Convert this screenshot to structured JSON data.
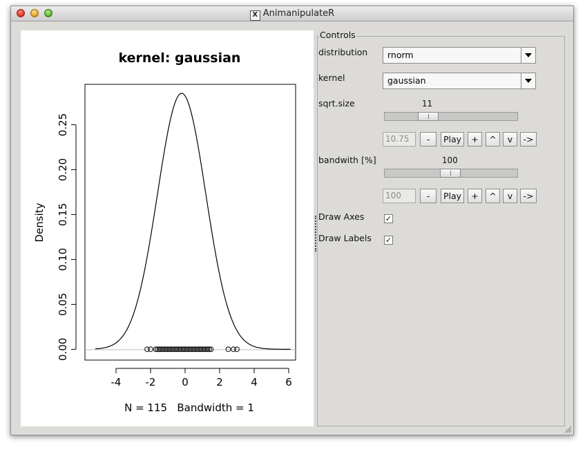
{
  "window": {
    "title": "AnimanipulateR",
    "x_icon": "X"
  },
  "plot": {
    "title": "kernel: gaussian",
    "ylabel": "Density",
    "xlabel": "N = 115   Bandwidth = 1",
    "xticks": [
      "-4",
      "-2",
      "0",
      "2",
      "4",
      "6"
    ],
    "yticks": [
      "0.00",
      "0.05",
      "0.10",
      "0.15",
      "0.20",
      "0.25"
    ]
  },
  "chart_data": {
    "type": "line",
    "title": "kernel: gaussian",
    "xlabel": "N = 115   Bandwidth = 1",
    "ylabel": "Density",
    "xlim": [
      -5.8,
      6.4
    ],
    "ylim": [
      -0.012,
      0.295
    ],
    "series": [
      {
        "shape": "gaussian density curve",
        "peak_x": -0.2,
        "peak_y": 0.285,
        "sd": 1.4
      }
    ],
    "rug_points": [
      -2.2,
      -2.0,
      -1.7,
      -1.6,
      -1.5,
      -1.4,
      -1.3,
      -1.2,
      -1.1,
      -1.0,
      -0.9,
      -0.8,
      -0.7,
      -0.6,
      -0.5,
      -0.4,
      -0.3,
      -0.2,
      -0.1,
      0.0,
      0.1,
      0.2,
      0.3,
      0.4,
      0.5,
      0.6,
      0.7,
      0.8,
      0.9,
      1.0,
      1.1,
      1.2,
      1.3,
      1.4,
      1.5,
      2.5,
      2.8,
      3.0
    ]
  },
  "controls": {
    "legend": "Controls",
    "distribution": {
      "label": "distribution",
      "value": "rnorm"
    },
    "kernel": {
      "label": "kernel",
      "value": "gaussian"
    },
    "sqrt_size": {
      "label": "sqrt.size",
      "value_label": "11",
      "position_fraction": 0.29,
      "box_value": "10.75",
      "buttons": {
        "minus": "-",
        "play": "Play",
        "plus": "+",
        "up": "^",
        "down": "v",
        "step": "->"
      }
    },
    "bandwidth": {
      "label": "bandwith [%]",
      "value_label": "100",
      "position_fraction": 0.49,
      "box_value": "100",
      "buttons": {
        "minus": "-",
        "play": "Play",
        "plus": "+",
        "up": "^",
        "down": "v",
        "step": "->"
      }
    },
    "draw_axes": {
      "label": "Draw Axes",
      "checked": "✓"
    },
    "draw_labels": {
      "label": "Draw Labels",
      "checked": "✓"
    }
  }
}
